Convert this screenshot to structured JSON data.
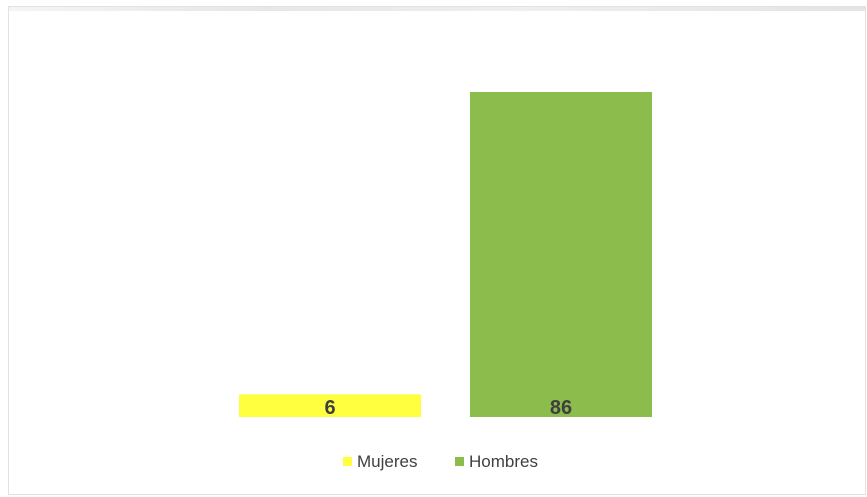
{
  "chart_data": {
    "type": "bar",
    "title": "",
    "xlabel": "",
    "ylabel": "",
    "grid": false,
    "legend_position": "bottom",
    "ylim": [
      0,
      86
    ],
    "series": [
      {
        "name": "Mujeres",
        "value": 6,
        "color": "#ffff40"
      },
      {
        "name": "Hombres",
        "value": 86,
        "color": "#8cbc4c"
      }
    ]
  }
}
